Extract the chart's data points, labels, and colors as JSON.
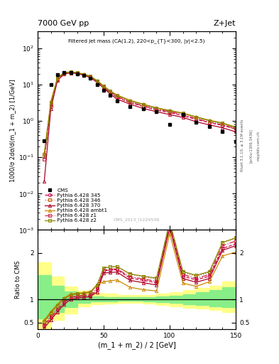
{
  "title_top": "7000 GeV pp",
  "title_right": "Z+Jet",
  "plot_title": "Filtered jet mass (CA(1.2), 220<p_{T}<300, |y|<2.5)",
  "xlabel": "(m_1 + m_2) / 2 [GeV]",
  "ylabel_main": "1000/σ 2dσ/d(m_1 + m_2) [1/GeV]",
  "ylabel_ratio": "Ratio to CMS",
  "watermark": "CMS_2013_I1224539",
  "rivet_label": "Rivet 3.1.10, ≥ 3.1M events",
  "arxiv_label": "[arXiv:1306.3436]",
  "mcplots_label": "mcplots.cern.ch",
  "x_data": [
    5,
    10,
    15,
    20,
    25,
    30,
    35,
    40,
    45,
    50,
    55,
    60,
    70,
    80,
    90,
    100,
    110,
    120,
    130,
    140,
    150
  ],
  "cms_y": [
    0.28,
    10.0,
    19.0,
    22.0,
    22.0,
    20.0,
    18.0,
    15.0,
    10.0,
    7.0,
    5.0,
    3.5,
    2.5,
    2.2,
    1.8,
    0.8,
    1.5,
    0.9,
    0.7,
    0.5,
    0.27
  ],
  "p345_y": [
    0.09,
    2.5,
    14.0,
    20.0,
    21.5,
    20.5,
    18.5,
    16.0,
    12.0,
    8.5,
    6.0,
    4.5,
    3.2,
    2.5,
    2.0,
    1.7,
    1.4,
    1.1,
    0.9,
    0.75,
    0.6
  ],
  "p346_y": [
    0.12,
    3.0,
    15.0,
    21.0,
    22.0,
    21.0,
    19.0,
    16.5,
    12.5,
    9.0,
    6.5,
    5.0,
    3.5,
    2.8,
    2.2,
    1.9,
    1.6,
    1.25,
    1.0,
    0.85,
    0.65
  ],
  "p370_y": [
    0.022,
    2.2,
    13.0,
    19.5,
    21.0,
    20.0,
    18.0,
    15.5,
    11.5,
    8.0,
    5.5,
    4.0,
    2.9,
    2.2,
    1.8,
    1.5,
    1.25,
    0.95,
    0.78,
    0.65,
    0.5
  ],
  "pambt1_y": [
    0.13,
    3.5,
    15.5,
    21.5,
    22.5,
    21.5,
    19.5,
    17.0,
    13.0,
    9.2,
    6.7,
    5.2,
    3.7,
    2.9,
    2.3,
    1.95,
    1.65,
    1.3,
    1.05,
    0.88,
    0.68
  ],
  "pz1_y": [
    0.09,
    2.8,
    14.5,
    20.5,
    21.8,
    20.8,
    18.8,
    16.2,
    12.2,
    8.7,
    6.2,
    4.7,
    3.3,
    2.6,
    2.1,
    1.8,
    1.5,
    1.15,
    0.93,
    0.78,
    0.62
  ],
  "pz2_y": [
    0.11,
    3.2,
    15.2,
    20.8,
    22.2,
    21.2,
    19.2,
    16.8,
    12.8,
    9.0,
    6.6,
    5.1,
    3.6,
    2.85,
    2.25,
    1.92,
    1.62,
    1.28,
    1.02,
    0.86,
    0.66
  ],
  "ratio_x": [
    5,
    10,
    15,
    20,
    25,
    30,
    35,
    40,
    45,
    50,
    55,
    60,
    70,
    80,
    90,
    100,
    110,
    120,
    130,
    140,
    150
  ],
  "r345": [
    0.42,
    0.6,
    0.77,
    0.93,
    1.04,
    1.06,
    1.07,
    1.08,
    1.2,
    1.62,
    1.63,
    1.64,
    1.46,
    1.41,
    1.36,
    2.6,
    1.5,
    1.42,
    1.5,
    2.1,
    2.2
  ],
  "r346": [
    0.5,
    0.7,
    0.86,
    1.0,
    1.09,
    1.11,
    1.12,
    1.14,
    1.3,
    1.68,
    1.7,
    1.71,
    1.54,
    1.49,
    1.44,
    2.66,
    1.58,
    1.5,
    1.58,
    2.22,
    2.32
  ],
  "r370": [
    0.38,
    0.56,
    0.73,
    0.89,
    1.0,
    1.03,
    1.04,
    1.06,
    1.16,
    1.57,
    1.58,
    1.59,
    1.41,
    1.36,
    1.31,
    2.55,
    1.45,
    1.37,
    1.45,
    2.06,
    2.16
  ],
  "rambt1": [
    0.55,
    0.74,
    0.9,
    1.03,
    1.12,
    1.13,
    1.15,
    1.17,
    1.32,
    1.38,
    1.4,
    1.42,
    1.26,
    1.21,
    1.18,
    2.42,
    1.35,
    1.28,
    1.38,
    1.94,
    2.02
  ],
  "rz1": [
    0.45,
    0.64,
    0.8,
    0.96,
    1.05,
    1.07,
    1.09,
    1.11,
    1.24,
    1.63,
    1.65,
    1.66,
    1.49,
    1.44,
    1.39,
    2.63,
    1.54,
    1.45,
    1.54,
    2.16,
    2.26
  ],
  "rz2": [
    0.52,
    0.71,
    0.87,
    1.01,
    1.1,
    1.12,
    1.13,
    1.15,
    1.31,
    1.68,
    1.7,
    1.71,
    1.55,
    1.5,
    1.46,
    2.68,
    1.6,
    1.52,
    1.6,
    2.23,
    2.33
  ],
  "band_x": [
    0,
    5,
    10,
    20,
    30,
    40,
    50,
    60,
    70,
    80,
    90,
    100,
    110,
    120,
    130,
    140,
    150
  ],
  "yellow_lo": [
    0.35,
    0.35,
    0.55,
    0.7,
    0.85,
    0.9,
    0.91,
    0.92,
    0.92,
    0.91,
    0.88,
    0.85,
    0.82,
    0.8,
    0.77,
    0.72,
    0.7
  ],
  "yellow_hi": [
    1.8,
    1.8,
    1.5,
    1.28,
    1.18,
    1.14,
    1.12,
    1.1,
    1.1,
    1.1,
    1.12,
    1.15,
    1.2,
    1.25,
    1.3,
    1.38,
    1.45
  ],
  "green_lo": [
    0.58,
    0.58,
    0.73,
    0.83,
    0.92,
    0.95,
    0.96,
    0.97,
    0.97,
    0.96,
    0.94,
    0.92,
    0.9,
    0.88,
    0.85,
    0.83,
    0.81
  ],
  "green_hi": [
    1.52,
    1.52,
    1.3,
    1.17,
    1.09,
    1.06,
    1.05,
    1.04,
    1.04,
    1.05,
    1.06,
    1.08,
    1.11,
    1.15,
    1.2,
    1.26,
    1.3
  ],
  "color_345": "#cc0044",
  "color_346": "#bb5500",
  "color_370": "#aa0022",
  "color_ambt1": "#cc8800",
  "color_z1": "#cc2244",
  "color_z2": "#888800",
  "xlim": [
    0,
    150
  ],
  "ylim_main": [
    0.001,
    300
  ],
  "ylim_ratio": [
    0.35,
    2.5
  ],
  "xticks": [
    0,
    50,
    100,
    150
  ]
}
